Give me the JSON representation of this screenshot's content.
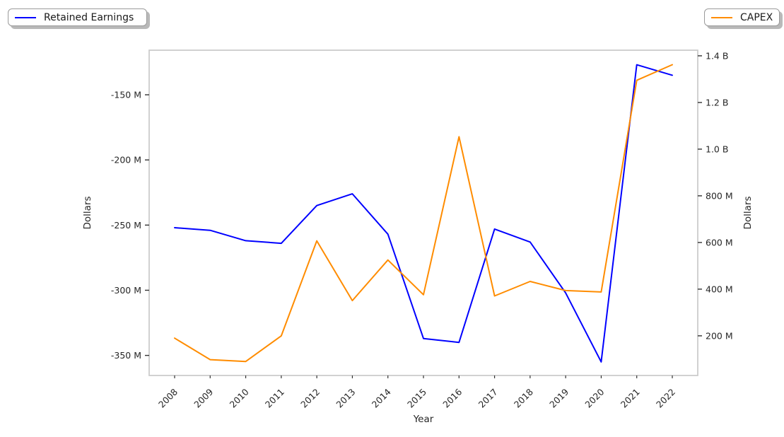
{
  "figure": {
    "legend_left": {
      "label": "Retained Earnings"
    },
    "legend_right": {
      "label": "CAPEX"
    }
  },
  "colors": {
    "retained_earnings": "#0000ff",
    "capex": "#ff8c00",
    "spine": "#cccccc",
    "tick": "#333333",
    "text": "#262626"
  },
  "chart_data": {
    "type": "line",
    "title": "",
    "xlabel": "Year",
    "grid": false,
    "legend_positions": [
      "top-left",
      "top-right"
    ],
    "x": [
      2008,
      2009,
      2010,
      2011,
      2012,
      2013,
      2014,
      2015,
      2016,
      2017,
      2018,
      2019,
      2020,
      2021,
      2022
    ],
    "x_tick_labels": [
      "2008",
      "2009",
      "2010",
      "2011",
      "2012",
      "2013",
      "2014",
      "2015",
      "2016",
      "2017",
      "2018",
      "2019",
      "2020",
      "2021",
      "2022"
    ],
    "series": [
      {
        "name": "Retained Earnings",
        "axis": "left",
        "color": "#0000ff",
        "unit": "USD (millions)",
        "values_million_usd": [
          -252,
          -254,
          -262,
          -264,
          -235,
          -226,
          -257,
          -337,
          -340,
          -253,
          -263,
          -302,
          -355,
          -127,
          -135
        ]
      },
      {
        "name": "CAPEX",
        "axis": "right",
        "color": "#ff8c00",
        "unit": "USD (millions)",
        "values_million_usd": [
          190,
          98,
          90,
          200,
          607,
          351,
          525,
          376,
          1053,
          371,
          433,
          394,
          388,
          1295,
          1362
        ]
      }
    ],
    "y_left": {
      "label": "Dollars",
      "tick_values_million": [
        -150,
        -200,
        -250,
        -300,
        -350
      ],
      "tick_labels": [
        "-150 M",
        "-200 M",
        "-250 M",
        "-300 M",
        "-350 M"
      ],
      "range_million": [
        -365.4,
        -115.8
      ]
    },
    "y_right": {
      "label": "Dollars",
      "tick_values_million": [
        1400,
        1200,
        1000,
        800,
        600,
        400,
        200
      ],
      "tick_labels": [
        "1.4 B",
        "1.2 B",
        "1.0 B",
        "800 M",
        "600 M",
        "400 M",
        "200 M"
      ],
      "range_million": [
        30,
        1424
      ]
    }
  }
}
